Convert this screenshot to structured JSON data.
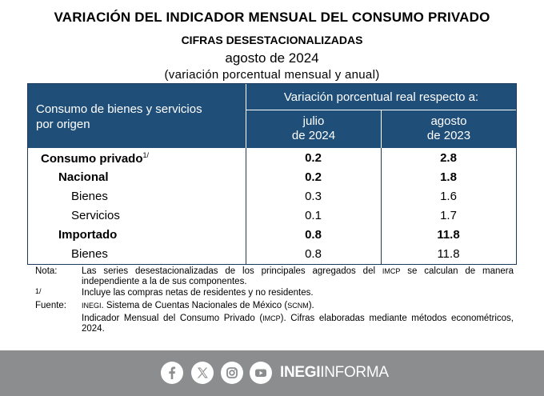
{
  "title": "VARIACIÓN DEL INDICADOR MENSUAL DEL CONSUMO PRIVADO",
  "subtitle": "CIFRAS DESESTACIONALIZADAS",
  "period": "agosto de 2024",
  "note_line": "(variación porcentual mensual y anual)",
  "table": {
    "header_main_1": "Consumo de bienes y servicios",
    "header_main_2": "por origen",
    "header_span": "Variación porcentual real respecto a:",
    "col1_line1": "julio",
    "col1_line2": "de 2024",
    "col2_line1": "agosto",
    "col2_line2": "de 2023",
    "rows": [
      {
        "label": "Consumo privado",
        "sup": "1/",
        "v1": "0.2",
        "v2": "2.8"
      },
      {
        "label": "Nacional",
        "v1": "0.2",
        "v2": "1.8"
      },
      {
        "label": "Bienes",
        "v1": "0.3",
        "v2": "1.6"
      },
      {
        "label": "Servicios",
        "v1": "0.1",
        "v2": "1.7"
      },
      {
        "label": "Importado",
        "v1": "0.8",
        "v2": "11.8"
      },
      {
        "label": "Bienes",
        "v1": "0.8",
        "v2": "11.8"
      }
    ]
  },
  "notes": {
    "nota_key": "Nota:",
    "nota_text_a": "Las series desestacionalizadas de los principales agregados del ",
    "nota_abbr": "IMCP",
    "nota_text_b": " se calculan de manera independiente a la de sus componentes.",
    "fn_key": "1/",
    "fn_text": "Incluye las compras netas de residentes y no residentes.",
    "fuente_key": "Fuente:",
    "fuente_abbr1": "INEGI",
    "fuente_text_a": ". Sistema de Cuentas Nacionales de México (",
    "fuente_abbr2": "SCNM",
    "fuente_text_b": ").",
    "fuente_text_c": "Indicador Mensual del Consumo Privado (",
    "fuente_abbr3": "IMCP",
    "fuente_text_d": "). Cifras elaboradas mediante métodos econométricos, 2024."
  },
  "footer": {
    "brand_bold": "INEGI",
    "brand_rest": "INFORMA",
    "icons": [
      "facebook-icon",
      "x-icon",
      "instagram-icon",
      "youtube-icon"
    ]
  }
}
